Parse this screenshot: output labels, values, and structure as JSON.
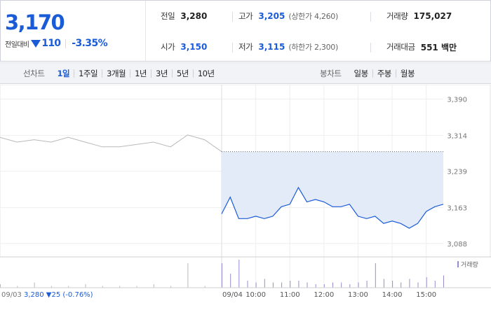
{
  "quote": {
    "price": "3,170",
    "change_label": "전일대비",
    "change_abs": "110",
    "change_pct": "-3.35%",
    "prev_close": {
      "label": "전일",
      "value": "3,280"
    },
    "high": {
      "label": "고가",
      "value": "3,205",
      "limit_text": "(상한가 4,260)"
    },
    "volume": {
      "label": "거래량",
      "value": "175,027"
    },
    "open": {
      "label": "시가",
      "value": "3,150"
    },
    "low": {
      "label": "저가",
      "value": "3,115",
      "limit_text": "(하한가 2,300)"
    },
    "turnover": {
      "label": "거래대금",
      "value": "551 백만"
    }
  },
  "line_tabs": {
    "title": "선차트",
    "items": [
      "1일",
      "1주일",
      "3개월",
      "1년",
      "3년",
      "5년",
      "10년"
    ],
    "active": "1일"
  },
  "candle_tabs": {
    "title": "봉차트",
    "items": [
      "일봉",
      "주봉",
      "월봉"
    ]
  },
  "prev_day_label": {
    "date": "09/03",
    "close": "3,280",
    "change": "▼25",
    "pct": "(-0.76%)"
  },
  "colors": {
    "accent": "#1a5bd8",
    "up": "#d83a3a",
    "prev_line": "#b9b9b9",
    "fill": "#e3ebf9",
    "volume": "#9a8bd0"
  },
  "chart_data": {
    "type": "line",
    "y_ticks": [
      3390,
      3314,
      3239,
      3163,
      3088
    ],
    "ylim": [
      3060,
      3420
    ],
    "x_tick_labels": [
      "09/03",
      "09/04",
      "10:00",
      "11:00",
      "12:00",
      "13:00",
      "14:00",
      "15:00"
    ],
    "reference_line": 3280,
    "volume_legend": "거래량",
    "series": [
      {
        "date": "09/03",
        "times": [
          "09:00",
          "09:30",
          "10:00",
          "10:30",
          "11:00",
          "11:30",
          "12:00",
          "12:30",
          "13:00",
          "13:30",
          "14:00",
          "14:30",
          "15:00",
          "15:30"
        ],
        "values": [
          3310,
          3300,
          3305,
          3300,
          3310,
          3300,
          3290,
          3290,
          3295,
          3300,
          3290,
          3315,
          3305,
          3280
        ]
      },
      {
        "date": "09/04",
        "times": [
          "09:00",
          "09:15",
          "09:30",
          "09:45",
          "10:00",
          "10:15",
          "10:30",
          "10:45",
          "11:00",
          "11:15",
          "11:30",
          "11:45",
          "12:00",
          "12:15",
          "12:30",
          "12:45",
          "13:00",
          "13:15",
          "13:30",
          "13:45",
          "14:00",
          "14:15",
          "14:30",
          "14:45",
          "15:00",
          "15:15",
          "15:30"
        ],
        "values": [
          3150,
          3185,
          3140,
          3140,
          3145,
          3140,
          3145,
          3165,
          3170,
          3205,
          3175,
          3180,
          3175,
          3165,
          3165,
          3170,
          3145,
          3140,
          3145,
          3130,
          3135,
          3130,
          3120,
          3130,
          3155,
          3165,
          3170
        ]
      }
    ],
    "volume": {
      "09/03": [
        2,
        1,
        3,
        1,
        1,
        2,
        1,
        1,
        1,
        2,
        1,
        14,
        1,
        2
      ],
      "09/04": [
        14,
        8,
        16,
        4,
        3,
        5,
        3,
        3,
        4,
        4,
        3,
        2,
        2,
        3,
        3,
        2,
        3,
        4,
        14,
        5,
        4,
        3,
        5,
        3,
        6,
        4,
        7
      ]
    }
  }
}
